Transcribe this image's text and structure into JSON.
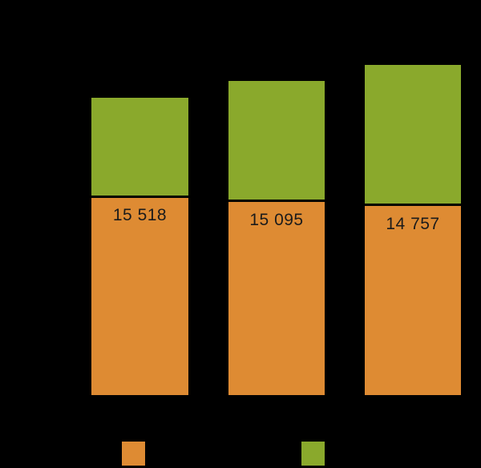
{
  "chart_data": {
    "type": "bar",
    "stacked": true,
    "orientation": "vertical",
    "title": "",
    "xlabel": "",
    "ylabel": "",
    "categories": [
      "",
      "",
      ""
    ],
    "series": [
      {
        "name": "",
        "role": "bottom-segment",
        "color": "#DE8B33",
        "values": [
          15518,
          15095,
          14757
        ],
        "labels": [
          "15 518",
          "15 095",
          "14 757"
        ],
        "labels_visible": true
      },
      {
        "name": "",
        "role": "top-segment",
        "color": "#8AA92C",
        "values": [
          7600,
          9250,
          10800
        ],
        "values_estimated_from_pixels": true,
        "labels_visible": false
      }
    ],
    "totals_estimated": [
      23100,
      24350,
      25550
    ],
    "segment_separator_color": "#000000",
    "value_label_color": "#1b1b1b",
    "background": "#000000",
    "grid": false,
    "legend": {
      "position": "bottom",
      "entries": [
        {
          "label": "",
          "color": "#DE8B33"
        },
        {
          "label": "",
          "color": "#8AA92C"
        }
      ]
    }
  }
}
